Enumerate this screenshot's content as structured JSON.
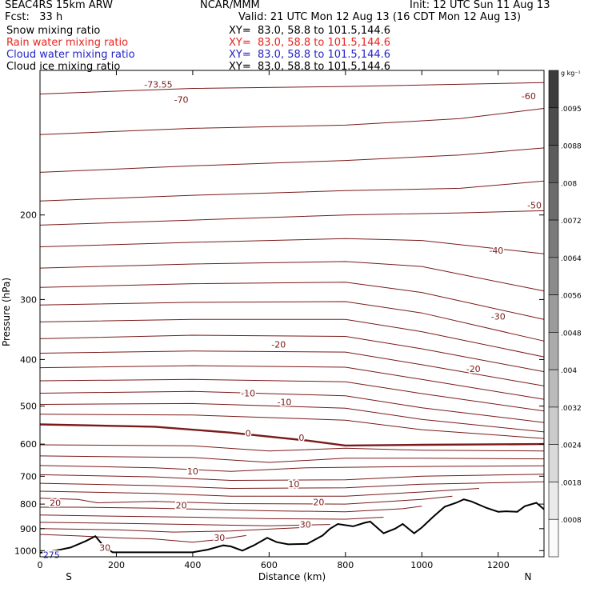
{
  "header": {
    "model": "SEAC4RS 15km ARW",
    "forecast": "Fcst:   33 h",
    "center": "NCAR/MMM",
    "init": "Init: 12 UTC Sun 11 Aug 13",
    "valid": "Valid: 21 UTC Mon 12 Aug 13 (16 CDT Mon 12 Aug 13)",
    "fields": [
      {
        "name": "Snow mixing ratio",
        "xy": "XY=  83.0, 58.8 to 101.5,144.6",
        "color": "#000000"
      },
      {
        "name": "Rain water mixing ratio",
        "xy": "XY=  83.0, 58.8 to 101.5,144.6",
        "color": "#e8241f"
      },
      {
        "name": "Cloud water mixing ratio",
        "xy": "XY=  83.0, 58.8 to 101.5,144.6",
        "color": "#2323c8"
      },
      {
        "name": "Cloud ice mixing ratio",
        "xy": "XY=  83.0, 58.8 to 101.5,144.6",
        "color": "#000000"
      }
    ]
  },
  "chart_data": {
    "type": "line",
    "xlabel": "Distance (km)",
    "ylabel": "Pressure (hPa)",
    "xlim": [
      0,
      1320
    ],
    "ylim": [
      1030,
      100
    ],
    "x_ticks": [
      0,
      200,
      400,
      600,
      800,
      1000,
      1200
    ],
    "y_ticks": [
      200,
      300,
      400,
      500,
      600,
      700,
      800,
      900,
      1000
    ],
    "direction_labels": {
      "left": "S",
      "right": "N"
    },
    "contour_color": "#7a1a1a",
    "colorbar": {
      "unit": "g kg⁻¹",
      "labels": [
        ".0095",
        ".0088",
        ".008",
        ".0072",
        ".0064",
        ".0056",
        ".0048",
        ".004",
        ".0032",
        ".0024",
        ".0018",
        ".0008"
      ]
    },
    "contour_labels": [
      {
        "text": "-73.55",
        "x": 310,
        "p": 107
      },
      {
        "text": "-70",
        "x": 370,
        "p": 115
      },
      {
        "text": "-60",
        "x": 1280,
        "p": 113
      },
      {
        "text": "-50",
        "x": 1295,
        "p": 191
      },
      {
        "text": "-40",
        "x": 1195,
        "p": 237
      },
      {
        "text": "-30",
        "x": 1200,
        "p": 325
      },
      {
        "text": "-20",
        "x": 625,
        "p": 372
      },
      {
        "text": "-20",
        "x": 1135,
        "p": 418
      },
      {
        "text": "-10",
        "x": 545,
        "p": 470
      },
      {
        "text": "-10",
        "x": 640,
        "p": 490
      },
      {
        "text": "0",
        "x": 545,
        "p": 570
      },
      {
        "text": "0",
        "x": 685,
        "p": 582
      },
      {
        "text": "10",
        "x": 400,
        "p": 683
      },
      {
        "text": "10",
        "x": 665,
        "p": 726
      },
      {
        "text": "20",
        "x": 40,
        "p": 795
      },
      {
        "text": "20",
        "x": 370,
        "p": 804
      },
      {
        "text": "20",
        "x": 730,
        "p": 792
      },
      {
        "text": "30",
        "x": 695,
        "p": 882
      },
      {
        "text": "30",
        "x": 470,
        "p": 940
      },
      {
        "text": "30",
        "x": 170,
        "p": 985
      },
      {
        "text": "275",
        "x": 30,
        "p": 1020
      }
    ],
    "isotherms": [
      {
        "x": [
          0,
          400,
          800,
          1320
        ],
        "p": [
          112,
          109,
          108,
          106
        ]
      },
      {
        "x": [
          0,
          400,
          800,
          1100,
          1320
        ],
        "p": [
          136,
          132,
          130,
          126,
          120
        ]
      },
      {
        "x": [
          0,
          400,
          800,
          1100,
          1320
        ],
        "p": [
          163,
          158,
          154,
          150,
          145
        ]
      },
      {
        "x": [
          0,
          400,
          800,
          1100,
          1320
        ],
        "p": [
          187,
          182,
          178,
          176,
          170
        ]
      },
      {
        "x": [
          0,
          400,
          800,
          1100,
          1320
        ],
        "p": [
          210,
          205,
          200,
          198,
          196
        ]
      },
      {
        "x": [
          0,
          400,
          800,
          1000,
          1320
        ],
        "p": [
          233,
          228,
          224,
          226,
          241
        ]
      },
      {
        "x": [
          0,
          400,
          800,
          1000,
          1320
        ],
        "p": [
          258,
          253,
          250,
          256,
          288
        ]
      },
      {
        "x": [
          0,
          400,
          800,
          1000,
          1320
        ],
        "p": [
          283,
          278,
          276,
          290,
          330
        ]
      },
      {
        "x": [
          0,
          400,
          800,
          1000,
          1320
        ],
        "p": [
          308,
          304,
          303,
          320,
          366
        ]
      },
      {
        "x": [
          0,
          400,
          800,
          1000,
          1320
        ],
        "p": [
          334,
          330,
          330,
          350,
          395
        ]
      },
      {
        "x": [
          0,
          400,
          800,
          1000,
          1320
        ],
        "p": [
          362,
          356,
          358,
          380,
          424
        ]
      },
      {
        "x": [
          0,
          400,
          800,
          1000,
          1320
        ],
        "p": [
          388,
          384,
          386,
          410,
          454
        ]
      },
      {
        "x": [
          0,
          400,
          800,
          1000,
          1320
        ],
        "p": [
          416,
          412,
          415,
          440,
          484
        ]
      },
      {
        "x": [
          0,
          400,
          800,
          1000,
          1320
        ],
        "p": [
          443,
          440,
          445,
          471,
          512
        ]
      },
      {
        "x": [
          0,
          400,
          800,
          1000,
          1320
        ],
        "p": [
          470,
          466,
          476,
          504,
          541
        ]
      },
      {
        "x": [
          0,
          400,
          800,
          1000,
          1320
        ],
        "p": [
          496,
          494,
          505,
          533,
          566
        ]
      },
      {
        "x": [
          0,
          400,
          800,
          1000,
          1320
        ],
        "p": [
          520,
          522,
          535,
          560,
          584
        ]
      },
      {
        "x": [
          0,
          300,
          500,
          700,
          800,
          1000,
          1320
        ],
        "p": [
          546,
          552,
          568,
          590,
          604,
          602,
          600
        ],
        "bold": true
      },
      {
        "x": [
          0,
          400,
          600,
          800,
          1000,
          1320
        ],
        "p": [
          602,
          605,
          620,
          612,
          618,
          620
        ]
      },
      {
        "x": [
          0,
          400,
          600,
          800,
          1000,
          1320
        ],
        "p": [
          635,
          640,
          655,
          642,
          642,
          644
        ]
      },
      {
        "x": [
          0,
          300,
          500,
          700,
          1000,
          1320
        ],
        "p": [
          665,
          672,
          684,
          672,
          668,
          666
        ]
      },
      {
        "x": [
          0,
          300,
          500,
          800,
          1000,
          1320
        ],
        "p": [
          695,
          702,
          714,
          712,
          700,
          693
        ]
      },
      {
        "x": [
          0,
          300,
          500,
          800,
          1000,
          1320
        ],
        "p": [
          724,
          732,
          742,
          740,
          727,
          719
        ]
      },
      {
        "x": [
          0,
          300,
          500,
          800,
          1000,
          1150
        ],
        "p": [
          752,
          760,
          770,
          770,
          755,
          742
        ]
      },
      {
        "x": [
          0,
          100,
          150,
          300,
          500,
          800,
          1000,
          1080
        ],
        "p": [
          778,
          782,
          795,
          790,
          798,
          800,
          782,
          770
        ]
      },
      {
        "x": [
          0,
          100,
          300,
          600,
          800,
          950,
          1000
        ],
        "p": [
          812,
          812,
          816,
          826,
          830,
          818,
          808
        ]
      },
      {
        "x": [
          0,
          200,
          400,
          600,
          800,
          900
        ],
        "p": [
          843,
          848,
          852,
          858,
          860,
          852
        ]
      },
      {
        "x": [
          0,
          200,
          400,
          600,
          760
        ],
        "p": [
          873,
          877,
          882,
          888,
          882
        ]
      },
      {
        "x": [
          0,
          200,
          350,
          500,
          600,
          700
        ],
        "p": [
          900,
          905,
          915,
          910,
          902,
          894
        ]
      },
      {
        "x": [
          0,
          100,
          200,
          300,
          400,
          470,
          540
        ],
        "p": [
          925,
          932,
          940,
          946,
          960,
          948,
          930
        ]
      }
    ],
    "terrain": {
      "x": [
        0,
        40,
        80,
        120,
        145,
        165,
        190,
        250,
        300,
        400,
        440,
        480,
        500,
        530,
        560,
        595,
        620,
        650,
        700,
        740,
        760,
        780,
        820,
        850,
        865,
        900,
        930,
        950,
        980,
        1000,
        1030,
        1060,
        1090,
        1110,
        1130,
        1170,
        1200,
        1220,
        1250,
        1270,
        1300,
        1320
      ],
      "p": [
        1010,
        1000,
        985,
        955,
        933,
        975,
        1008,
        1008,
        1008,
        1008,
        995,
        975,
        980,
        1000,
        975,
        940,
        960,
        970,
        968,
        930,
        900,
        880,
        890,
        875,
        870,
        920,
        900,
        880,
        920,
        895,
        850,
        810,
        795,
        782,
        790,
        815,
        830,
        828,
        830,
        808,
        795,
        820
      ]
    }
  }
}
